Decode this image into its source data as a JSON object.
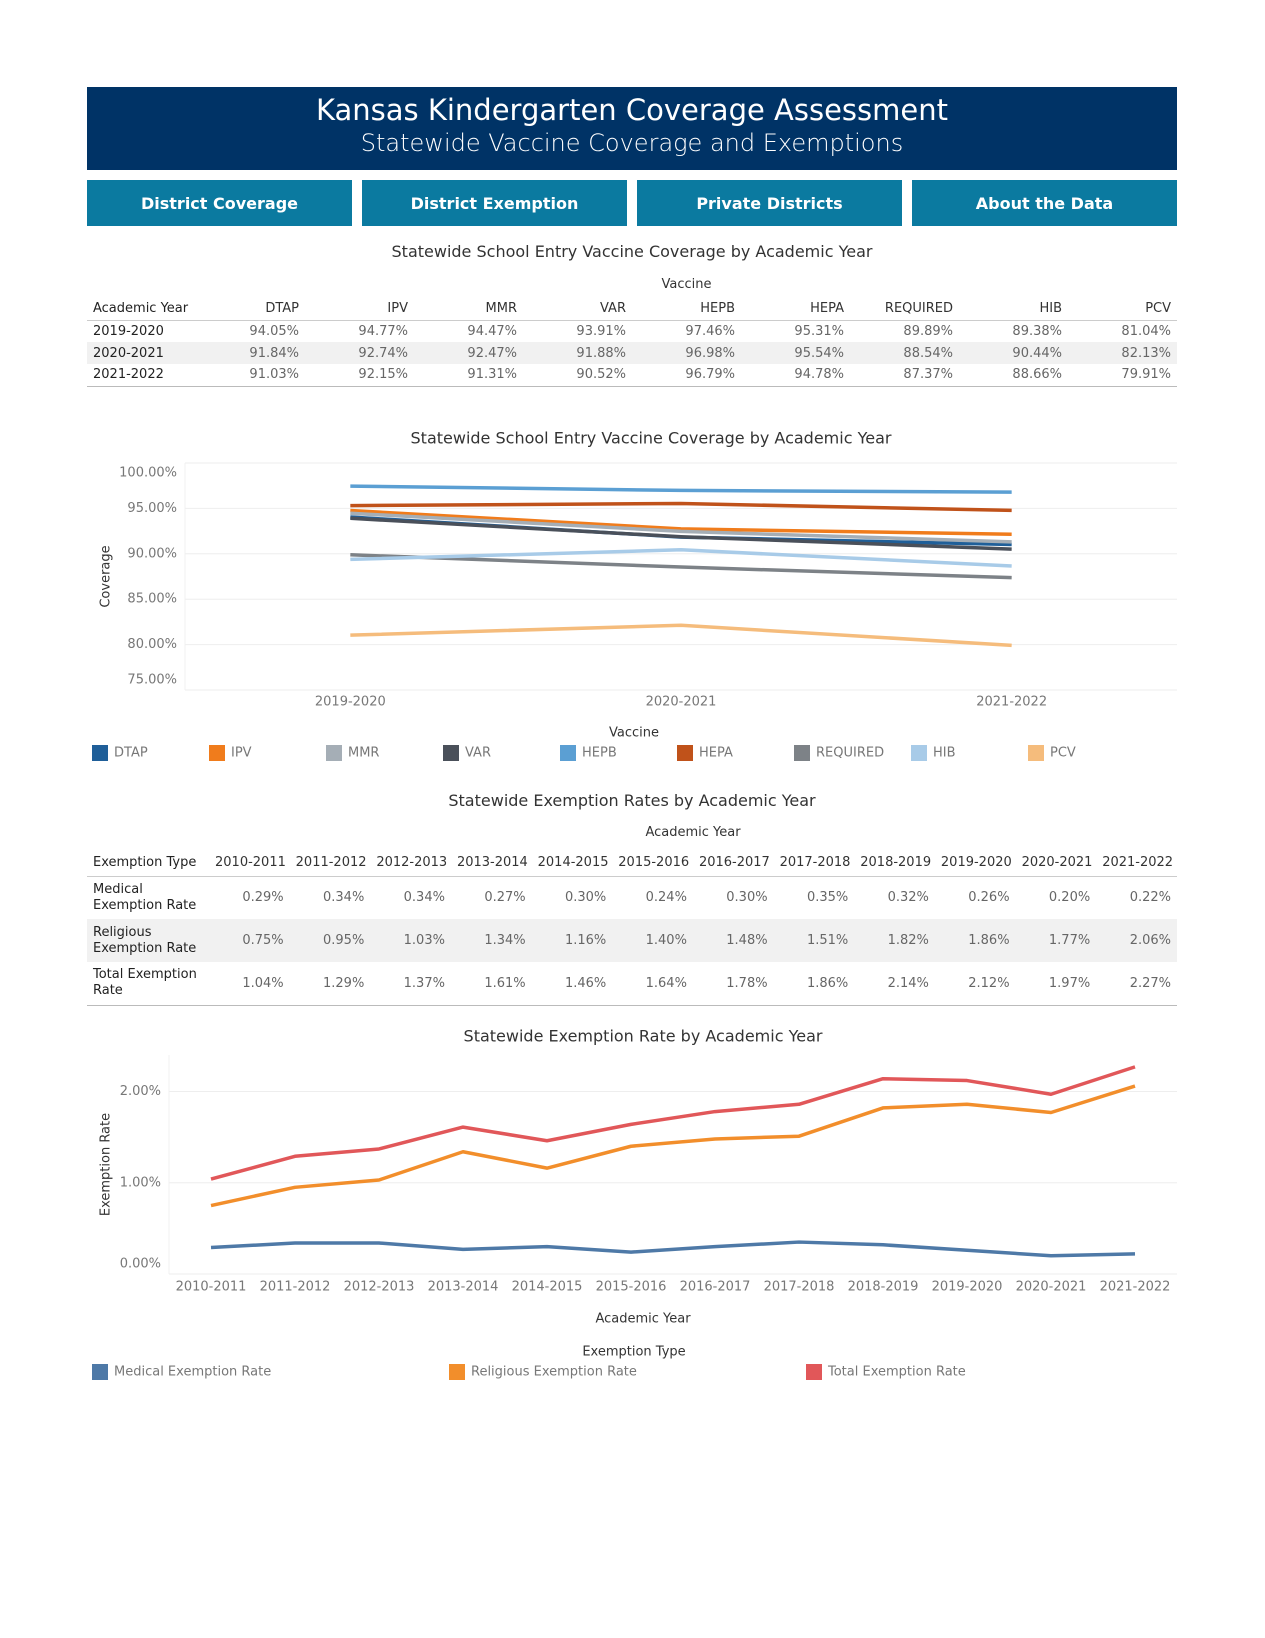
{
  "header": {
    "title": "Kansas Kindergarten Coverage Assessment",
    "subtitle": "Statewide Vaccine Coverage and Exemptions"
  },
  "nav": [
    "District Coverage",
    "District Exemption",
    "Private Districts",
    "About the Data"
  ],
  "tables": [
    {
      "title": "Statewide School Entry Vaccine Coverage by Academic Year",
      "group_label": "Vaccine",
      "columns": [
        "Academic Year",
        "DTAP",
        "IPV",
        "MMR",
        "VAR",
        "HEPB",
        "HEPA",
        "REQUIRED",
        "HIB",
        "PCV"
      ],
      "rows": [
        [
          "2019-2020",
          "94.05%",
          "94.77%",
          "94.47%",
          "93.91%",
          "97.46%",
          "95.31%",
          "89.89%",
          "89.38%",
          "81.04%"
        ],
        [
          "2020-2021",
          "91.84%",
          "92.74%",
          "92.47%",
          "91.88%",
          "96.98%",
          "95.54%",
          "88.54%",
          "90.44%",
          "82.13%"
        ],
        [
          "2021-2022",
          "91.03%",
          "92.15%",
          "91.31%",
          "90.52%",
          "96.79%",
          "94.78%",
          "87.37%",
          "88.66%",
          "79.91%"
        ]
      ]
    },
    {
      "title": "Statewide Exemption Rates by Academic Year",
      "group_label": "Academic Year",
      "columns": [
        "Exemption Type",
        "2010-2011",
        "2011-2012",
        "2012-2013",
        "2013-2014",
        "2014-2015",
        "2015-2016",
        "2016-2017",
        "2017-2018",
        "2018-2019",
        "2019-2020",
        "2020-2021",
        "2021-2022"
      ],
      "rows": [
        [
          "Medical Exemption Rate",
          "0.29%",
          "0.34%",
          "0.34%",
          "0.27%",
          "0.30%",
          "0.24%",
          "0.30%",
          "0.35%",
          "0.32%",
          "0.26%",
          "0.20%",
          "0.22%"
        ],
        [
          "Religious Exemption Rate",
          "0.75%",
          "0.95%",
          "1.03%",
          "1.34%",
          "1.16%",
          "1.40%",
          "1.48%",
          "1.51%",
          "1.82%",
          "1.86%",
          "1.77%",
          "2.06%"
        ],
        [
          "Total Exemption Rate",
          "1.04%",
          "1.29%",
          "1.37%",
          "1.61%",
          "1.46%",
          "1.64%",
          "1.78%",
          "1.86%",
          "2.14%",
          "2.12%",
          "1.97%",
          "2.27%"
        ]
      ]
    }
  ],
  "chart_data": [
    {
      "type": "line",
      "title": "Statewide School Entry Vaccine Coverage by Academic Year",
      "y_label": "Coverage",
      "legend_title": "Vaccine",
      "categories": [
        "2019-2020",
        "2020-2021",
        "2021-2022"
      ],
      "series": [
        {
          "name": "DTAP",
          "color": "#1f5f99",
          "values": [
            94.05,
            91.84,
            91.03
          ]
        },
        {
          "name": "IPV",
          "color": "#f07c1c",
          "values": [
            94.77,
            92.74,
            92.15
          ]
        },
        {
          "name": "MMR",
          "color": "#a5aeb6",
          "values": [
            94.47,
            92.47,
            91.31
          ]
        },
        {
          "name": "VAR",
          "color": "#4a505a",
          "values": [
            93.91,
            91.88,
            90.52
          ]
        },
        {
          "name": "HEPB",
          "color": "#5b9fd3",
          "values": [
            97.46,
            96.98,
            96.79
          ]
        },
        {
          "name": "HEPA",
          "color": "#c0521a",
          "values": [
            95.31,
            95.54,
            94.78
          ]
        },
        {
          "name": "REQUIRED",
          "color": "#7d8287",
          "values": [
            89.89,
            88.54,
            87.37
          ]
        },
        {
          "name": "HIB",
          "color": "#a8cbe8",
          "values": [
            89.38,
            90.44,
            88.66
          ]
        },
        {
          "name": "PCV",
          "color": "#f5bc7c",
          "values": [
            81.04,
            82.13,
            79.91
          ]
        }
      ],
      "ylim": [
        75,
        100
      ],
      "yticks": [
        {
          "value": 75,
          "label": "75.00%"
        },
        {
          "value": 80,
          "label": "80.00%"
        },
        {
          "value": 85,
          "label": "85.00%"
        },
        {
          "value": 90,
          "label": "90.00%"
        },
        {
          "value": 95,
          "label": "95.00%"
        },
        {
          "value": 100,
          "label": "100.00%"
        }
      ],
      "grid": true
    },
    {
      "type": "line",
      "title": "Statewide Exemption Rate by Academic Year",
      "y_label": "Exemption Rate",
      "x_label": "Academic Year",
      "legend_title": "Exemption Type",
      "categories": [
        "2010-2011",
        "2011-2012",
        "2012-2013",
        "2013-2014",
        "2014-2015",
        "2015-2016",
        "2016-2017",
        "2017-2018",
        "2018-2019",
        "2019-2020",
        "2020-2021",
        "2021-2022"
      ],
      "series": [
        {
          "name": "Medical Exemption Rate",
          "color": "#4e79a7",
          "values": [
            0.29,
            0.34,
            0.34,
            0.27,
            0.3,
            0.24,
            0.3,
            0.35,
            0.32,
            0.26,
            0.2,
            0.22
          ]
        },
        {
          "name": "Religious Exemption Rate",
          "color": "#f28e2b",
          "values": [
            0.75,
            0.95,
            1.03,
            1.34,
            1.16,
            1.4,
            1.48,
            1.51,
            1.82,
            1.86,
            1.77,
            2.06
          ]
        },
        {
          "name": "Total Exemption Rate",
          "color": "#e15759",
          "values": [
            1.04,
            1.29,
            1.37,
            1.61,
            1.46,
            1.64,
            1.78,
            1.86,
            2.14,
            2.12,
            1.97,
            2.27
          ]
        }
      ],
      "ylim": [
        0,
        2.4
      ],
      "yticks": [
        {
          "value": 0,
          "label": "0.00%"
        },
        {
          "value": 1,
          "label": "1.00%"
        },
        {
          "value": 2,
          "label": "2.00%"
        }
      ],
      "grid": true
    }
  ]
}
